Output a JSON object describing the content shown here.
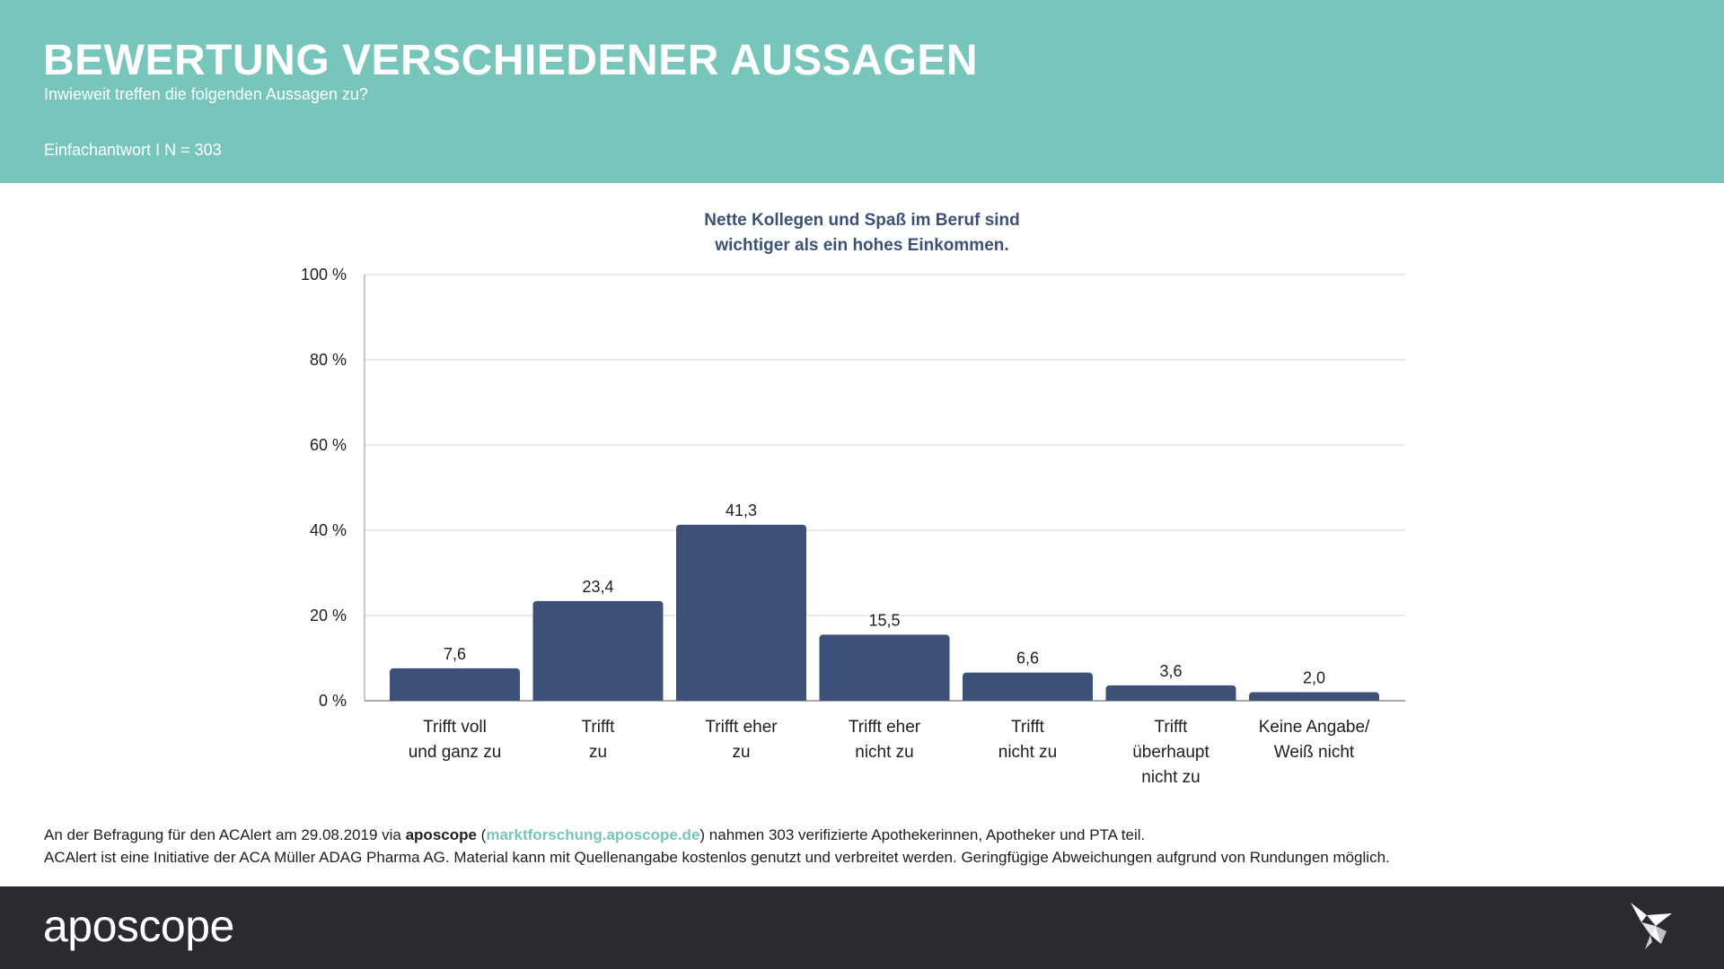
{
  "header": {
    "title": "BEWERTUNG VERSCHIEDENER AUSSAGEN",
    "subtitle": "Inwieweit treffen die folgenden Aussagen zu?",
    "note": "Einfachantwort I N = 303"
  },
  "chart_data": {
    "type": "bar",
    "title": "Nette Kollegen und Spaß im Beruf sind wichtiger als ein hohes Einkommen.",
    "title_lines": [
      "Nette Kollegen und Spaß im Beruf sind",
      "wichtiger als ein hohes Einkommen."
    ],
    "categories": [
      [
        "Trifft voll",
        "und ganz zu"
      ],
      [
        "Trifft",
        "zu"
      ],
      [
        "Trifft eher",
        "zu"
      ],
      [
        "Trifft eher",
        "nicht zu"
      ],
      [
        "Trifft",
        "nicht zu"
      ],
      [
        "Trifft",
        "überhaupt",
        "nicht zu"
      ],
      [
        "Keine Angabe/",
        "Weiß nicht"
      ]
    ],
    "values": [
      7.6,
      23.4,
      41.3,
      15.5,
      6.6,
      3.6,
      2.0
    ],
    "value_labels": [
      "7,6",
      "23,4",
      "41,3",
      "15,5",
      "6,6",
      "3,6",
      "2,0"
    ],
    "ylim": [
      0,
      100
    ],
    "yticks": [
      0,
      20,
      40,
      60,
      80,
      100
    ],
    "ytick_labels": [
      "0 %",
      "20 %",
      "40 %",
      "60 %",
      "80 %",
      "100 %"
    ],
    "grid": true,
    "bar_color": "#3d5078"
  },
  "footnote": {
    "line1_pre": "An der Befragung für den ACAlert am 29.08.2019 via ",
    "brand": "aposcope",
    "paren_open": " (",
    "link": "marktforschung.aposcope.de",
    "line1_post": ") nahmen 303 verifizierte Apothekerinnen, Apotheker und PTA teil.",
    "line2": "ACAlert ist eine Initiative der ACA Müller ADAG Pharma AG. Material kann mit Quellenangabe kostenlos genutzt und verbreitet werden. Geringfügige Abweichungen aufgrund von Rundungen möglich."
  },
  "footer": {
    "logo": "aposcope",
    "icon": "origami-bird-icon"
  },
  "colors": {
    "header_bg": "#78c5bc",
    "footer_bg": "#2a2b30",
    "accent": "#3d5078"
  }
}
